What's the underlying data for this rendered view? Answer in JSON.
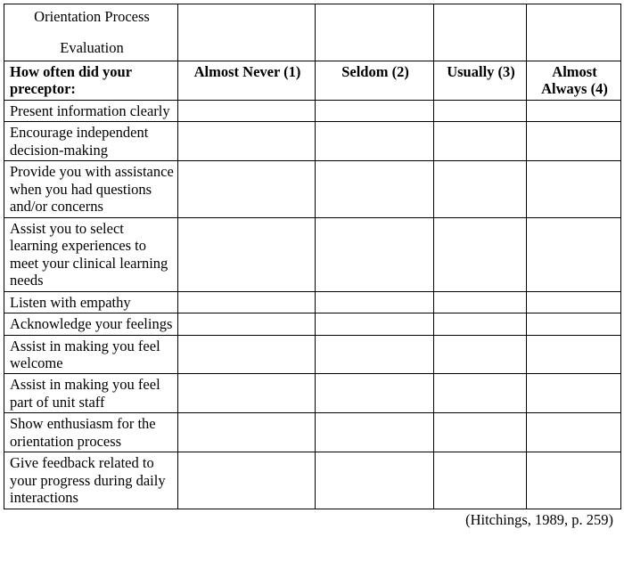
{
  "title_line1": "Orientation Process",
  "title_line2": "Evaluation",
  "header": {
    "question": "How often did your preceptor:",
    "col1": "Almost Never (1)",
    "col2": "Seldom (2)",
    "col3": "Usually (3)",
    "col4": "Almost Always (4)"
  },
  "rows": [
    "Present information clearly",
    "Encourage independent decision-making",
    "Provide you with assistance when you had questions and/or concerns",
    "Assist you to select learning experiences to meet your clinical learning needs",
    "Listen with empathy",
    "Acknowledge your feelings",
    "Assist in making you feel welcome",
    "Assist in making you feel part of unit staff",
    "Show enthusiasm for the orientation process",
    "Give feedback related to your progress during daily interactions"
  ],
  "citation": "(Hitchings, 1989, p. 259)"
}
